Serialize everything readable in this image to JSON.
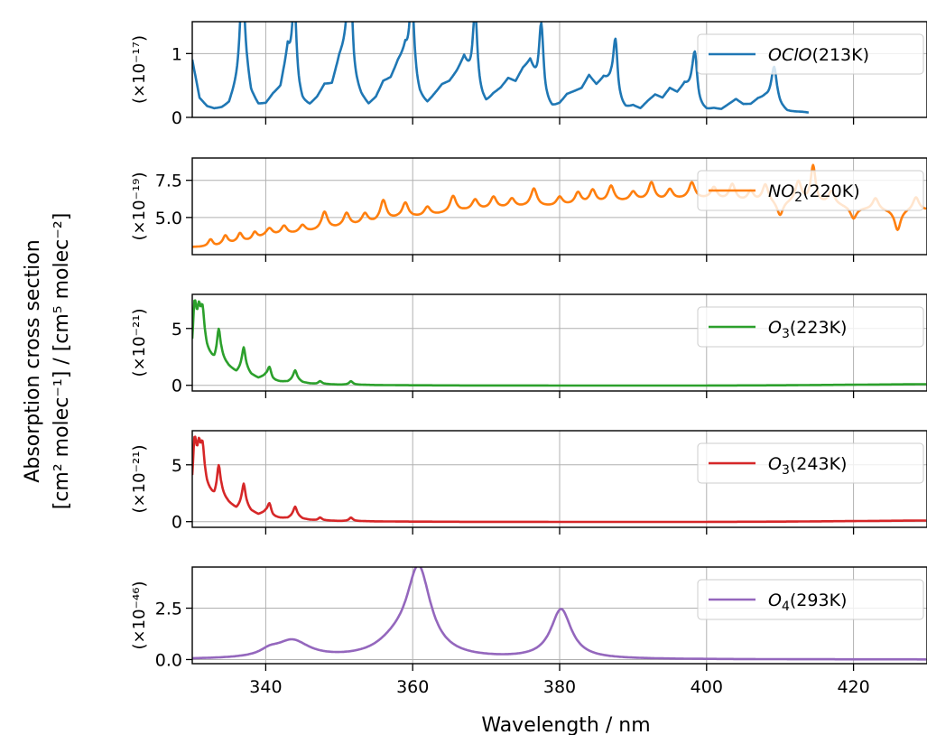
{
  "chart_data": {
    "type": "line",
    "xlabel": "Wavelength / nm",
    "ylabel_lines": [
      "Absorption cross section",
      "[cm² molec⁻¹] / [cm⁵ molec⁻²]"
    ],
    "xlim": [
      330,
      430
    ],
    "xticks": [
      340,
      360,
      380,
      400,
      420
    ],
    "grid": true,
    "panels": [
      {
        "series_name": "OClO(213K)",
        "legend_text": "OClO(213K)",
        "color": "#1f77b4",
        "scale_label": "(×10⁻¹⁷)",
        "ylim": [
          0,
          1.5
        ],
        "yticks": [
          0,
          1
        ],
        "legend_position": "top-right",
        "data_x_max": 414,
        "baseline": [
          [
            330,
            0.9
          ],
          [
            331,
            0.3
          ],
          [
            332,
            0.17
          ],
          [
            333,
            0.13
          ],
          [
            334,
            0.14
          ],
          [
            335,
            0.2
          ],
          [
            336,
            0.5
          ],
          [
            337,
            0.95
          ],
          [
            338,
            0.35
          ],
          [
            339,
            0.18
          ],
          [
            340,
            0.2
          ],
          [
            341,
            0.35
          ],
          [
            342,
            0.45
          ],
          [
            343,
            1.0
          ],
          [
            344,
            0.4
          ],
          [
            345,
            0.2
          ],
          [
            346,
            0.17
          ],
          [
            347,
            0.3
          ],
          [
            348,
            0.5
          ],
          [
            349,
            0.5
          ],
          [
            350,
            0.9
          ],
          [
            351,
            1.1
          ],
          [
            352,
            0.5
          ],
          [
            353,
            0.3
          ],
          [
            354,
            0.18
          ],
          [
            355,
            0.3
          ],
          [
            356,
            0.55
          ],
          [
            357,
            0.6
          ],
          [
            358,
            0.85
          ],
          [
            359,
            1.0
          ],
          [
            360,
            0.5
          ],
          [
            361,
            0.28
          ],
          [
            362,
            0.2
          ],
          [
            363,
            0.35
          ],
          [
            364,
            0.5
          ],
          [
            365,
            0.55
          ],
          [
            366,
            0.7
          ],
          [
            367,
            0.9
          ],
          [
            368,
            0.55
          ],
          [
            369,
            0.3
          ],
          [
            370,
            0.2
          ],
          [
            371,
            0.35
          ],
          [
            372,
            0.45
          ],
          [
            373,
            0.6
          ],
          [
            374,
            0.55
          ],
          [
            375,
            0.75
          ],
          [
            376,
            0.85
          ],
          [
            377,
            0.45
          ],
          [
            378,
            0.2
          ],
          [
            379,
            0.13
          ],
          [
            380,
            0.2
          ],
          [
            381,
            0.35
          ],
          [
            382,
            0.4
          ],
          [
            383,
            0.45
          ],
          [
            384,
            0.65
          ],
          [
            385,
            0.5
          ],
          [
            386,
            0.6
          ],
          [
            387,
            0.5
          ],
          [
            388,
            0.18
          ],
          [
            389,
            0.12
          ],
          [
            390,
            0.17
          ],
          [
            391,
            0.13
          ],
          [
            392,
            0.25
          ],
          [
            393,
            0.35
          ],
          [
            394,
            0.3
          ],
          [
            395,
            0.45
          ],
          [
            396,
            0.38
          ],
          [
            397,
            0.5
          ],
          [
            398,
            0.4
          ],
          [
            399,
            0.15
          ],
          [
            400,
            0.1
          ],
          [
            401,
            0.13
          ],
          [
            402,
            0.12
          ],
          [
            403,
            0.2
          ],
          [
            404,
            0.28
          ],
          [
            405,
            0.2
          ],
          [
            406,
            0.2
          ],
          [
            407,
            0.28
          ],
          [
            408,
            0.3
          ],
          [
            409,
            0.25
          ],
          [
            410,
            0.15
          ],
          [
            411,
            0.08
          ],
          [
            412,
            0.08
          ],
          [
            413,
            0.08
          ],
          [
            414,
            0.07
          ]
        ],
        "peaks": [
          [
            336.8,
            1.3,
            0.35
          ],
          [
            343.9,
            1.4,
            0.35
          ],
          [
            351.5,
            1.42,
            0.38
          ],
          [
            359.9,
            1.37,
            0.38
          ],
          [
            368.5,
            1.27,
            0.38
          ],
          [
            377.5,
            1.15,
            0.38
          ],
          [
            387.6,
            0.92,
            0.38
          ],
          [
            398.4,
            0.73,
            0.4
          ],
          [
            409.2,
            0.56,
            0.45
          ]
        ]
      },
      {
        "series_name": "NO2(220K)",
        "legend_text": "NO2(220K)",
        "color": "#ff7f0e",
        "scale_label": "(×10⁻¹⁹)",
        "ylim": [
          2.5,
          9.0
        ],
        "yticks": [
          5.0,
          7.5
        ],
        "legend_position": "top-right",
        "data_x_max": 430,
        "baseline": [
          [
            330,
            3.0
          ],
          [
            333,
            3.0
          ],
          [
            335,
            3.2
          ],
          [
            338,
            3.4
          ],
          [
            340,
            3.7
          ],
          [
            343,
            3.8
          ],
          [
            346,
            4.0
          ],
          [
            349,
            4.2
          ],
          [
            352,
            4.4
          ],
          [
            355,
            4.6
          ],
          [
            358,
            4.9
          ],
          [
            361,
            5.0
          ],
          [
            364,
            5.2
          ],
          [
            367,
            5.4
          ],
          [
            370,
            5.5
          ],
          [
            373,
            5.6
          ],
          [
            376,
            5.7
          ],
          [
            379,
            5.7
          ],
          [
            382,
            5.8
          ],
          [
            385,
            5.9
          ],
          [
            388,
            6.0
          ],
          [
            391,
            6.1
          ],
          [
            394,
            6.1
          ],
          [
            397,
            6.2
          ],
          [
            400,
            6.2
          ],
          [
            403,
            6.1
          ],
          [
            406,
            6.0
          ],
          [
            409,
            6.0
          ],
          [
            412,
            6.0
          ],
          [
            415,
            5.9
          ],
          [
            418,
            5.8
          ],
          [
            421,
            5.6
          ],
          [
            424,
            5.5
          ],
          [
            427,
            5.5
          ],
          [
            430,
            5.5
          ]
        ],
        "peaks": [
          [
            332.5,
            0.5,
            0.4
          ],
          [
            334.5,
            0.6,
            0.4
          ],
          [
            336.5,
            0.6,
            0.4
          ],
          [
            338.5,
            0.5,
            0.4
          ],
          [
            340.5,
            0.5,
            0.5
          ],
          [
            342.5,
            0.6,
            0.5
          ],
          [
            345,
            0.5,
            0.5
          ],
          [
            348,
            1.2,
            0.5
          ],
          [
            351,
            0.9,
            0.5
          ],
          [
            353.5,
            0.7,
            0.5
          ],
          [
            356,
            1.4,
            0.5
          ],
          [
            359,
            1.0,
            0.5
          ],
          [
            362,
            0.6,
            0.5
          ],
          [
            365.5,
            1.1,
            0.5
          ],
          [
            368.5,
            0.7,
            0.5
          ],
          [
            371,
            0.8,
            0.5
          ],
          [
            373.5,
            0.6,
            0.5
          ],
          [
            376.5,
            1.2,
            0.5
          ],
          [
            380,
            0.6,
            0.5
          ],
          [
            382.5,
            0.8,
            0.5
          ],
          [
            384.5,
            0.9,
            0.5
          ],
          [
            387,
            1.1,
            0.5
          ],
          [
            390,
            0.6,
            0.5
          ],
          [
            392.5,
            1.2,
            0.5
          ],
          [
            395,
            0.7,
            0.5
          ],
          [
            398,
            1.1,
            0.5
          ],
          [
            401,
            0.8,
            0.5
          ],
          [
            403.5,
            1.1,
            0.5
          ],
          [
            406,
            0.7,
            0.5
          ],
          [
            408,
            1.2,
            0.5
          ],
          [
            410,
            -1.0,
            0.5
          ],
          [
            412.5,
            1.4,
            0.5
          ],
          [
            414.5,
            2.5,
            0.4
          ],
          [
            417,
            0.9,
            0.5
          ],
          [
            420,
            -0.8,
            0.5
          ],
          [
            423,
            0.8,
            0.5
          ],
          [
            426,
            -1.4,
            0.5
          ],
          [
            428.5,
            0.9,
            0.5
          ]
        ]
      },
      {
        "series_name": "O3(223K)",
        "legend_text": "O3(223K)",
        "color": "#2ca02c",
        "scale_label": "(×10⁻²¹)",
        "ylim": [
          -0.5,
          8.0
        ],
        "yticks": [
          0,
          5
        ],
        "legend_position": "top-right",
        "data_x_max": 430,
        "baseline": [
          [
            330,
            2.5
          ],
          [
            330.5,
            4.5
          ],
          [
            331,
            4.8
          ],
          [
            332,
            3.0
          ],
          [
            333,
            2.0
          ],
          [
            334,
            2.3
          ],
          [
            335,
            1.6
          ],
          [
            336,
            1.1
          ],
          [
            337,
            1.6
          ],
          [
            338,
            0.9
          ],
          [
            339,
            0.6
          ],
          [
            340,
            0.8
          ],
          [
            341,
            0.4
          ],
          [
            342,
            0.3
          ],
          [
            343,
            0.3
          ],
          [
            344,
            0.6
          ],
          [
            345,
            0.25
          ],
          [
            346,
            0.15
          ],
          [
            347,
            0.1
          ],
          [
            348,
            0.1
          ],
          [
            350,
            0.05
          ],
          [
            352,
            0.05
          ],
          [
            355,
            0.02
          ],
          [
            360,
            0.0
          ],
          [
            370,
            -0.02
          ],
          [
            380,
            -0.02
          ],
          [
            390,
            -0.02
          ],
          [
            400,
            -0.02
          ],
          [
            410,
            0.0
          ],
          [
            420,
            0.05
          ],
          [
            430,
            0.1
          ]
        ],
        "peaks": [
          [
            330.3,
            3.4,
            0.25
          ],
          [
            330.9,
            1.4,
            0.2
          ],
          [
            331.4,
            2.6,
            0.3
          ],
          [
            333.6,
            2.7,
            0.3
          ],
          [
            337.0,
            1.7,
            0.3
          ],
          [
            340.5,
            1.0,
            0.3
          ],
          [
            344.0,
            0.7,
            0.3
          ],
          [
            347.4,
            0.25,
            0.3
          ],
          [
            351.6,
            0.3,
            0.3
          ]
        ]
      },
      {
        "series_name": "O3(243K)",
        "legend_text": "O3(243K)",
        "color": "#d62728",
        "scale_label": "(×10⁻²¹)",
        "ylim": [
          -0.5,
          8.0
        ],
        "yticks": [
          0,
          5
        ],
        "legend_position": "top-right",
        "data_x_max": 430,
        "baseline": [
          [
            330,
            2.5
          ],
          [
            330.5,
            4.5
          ],
          [
            331,
            4.8
          ],
          [
            332,
            3.0
          ],
          [
            333,
            2.0
          ],
          [
            334,
            2.3
          ],
          [
            335,
            1.6
          ],
          [
            336,
            1.1
          ],
          [
            337,
            1.6
          ],
          [
            338,
            0.9
          ],
          [
            339,
            0.6
          ],
          [
            340,
            0.8
          ],
          [
            341,
            0.4
          ],
          [
            342,
            0.3
          ],
          [
            343,
            0.3
          ],
          [
            344,
            0.6
          ],
          [
            345,
            0.25
          ],
          [
            346,
            0.15
          ],
          [
            347,
            0.1
          ],
          [
            348,
            0.1
          ],
          [
            350,
            0.05
          ],
          [
            352,
            0.05
          ],
          [
            355,
            0.02
          ],
          [
            360,
            0.0
          ],
          [
            370,
            -0.02
          ],
          [
            380,
            -0.02
          ],
          [
            390,
            -0.02
          ],
          [
            400,
            -0.02
          ],
          [
            410,
            0.0
          ],
          [
            420,
            0.05
          ],
          [
            430,
            0.1
          ]
        ],
        "peaks": [
          [
            330.3,
            3.4,
            0.25
          ],
          [
            330.9,
            1.4,
            0.2
          ],
          [
            331.4,
            2.6,
            0.3
          ],
          [
            333.6,
            2.7,
            0.3
          ],
          [
            337.0,
            1.7,
            0.3
          ],
          [
            340.5,
            1.0,
            0.3
          ],
          [
            344.0,
            0.7,
            0.3
          ],
          [
            347.4,
            0.25,
            0.3
          ],
          [
            351.6,
            0.3,
            0.3
          ]
        ]
      },
      {
        "series_name": "O4(293K)",
        "legend_text": "O4(293K)",
        "color": "#9467bd",
        "scale_label": "(×10⁻⁴⁶)",
        "ylim": [
          -0.2,
          4.5
        ],
        "yticks": [
          0.0,
          2.5
        ],
        "legend_position": "top-right",
        "data_x_max": 430,
        "baseline": [
          [
            330,
            0
          ],
          [
            430,
            0
          ]
        ],
        "peaks": [
          [
            343.6,
            0.85,
            2.8
          ],
          [
            340.5,
            0.25,
            1.5
          ],
          [
            360.8,
            4.3,
            2.0
          ],
          [
            357.5,
            0.55,
            3.0
          ],
          [
            380.2,
            2.4,
            1.7
          ]
        ]
      }
    ]
  }
}
